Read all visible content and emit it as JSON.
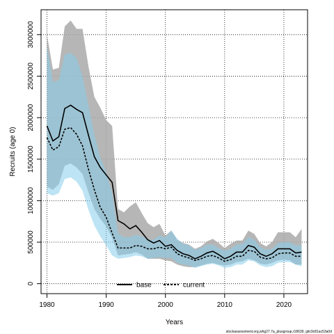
{
  "chart_data": {
    "type": "line",
    "xlabel": "Years",
    "ylabel": "Recruits (age 0)",
    "xlim": [
      1979,
      2024
    ],
    "ylim": [
      -120000,
      3300000
    ],
    "x_ticks": [
      1980,
      1990,
      2000,
      2010,
      2020
    ],
    "y_ticks": [
      0,
      500000,
      1000000,
      1500000,
      2000000,
      2500000,
      3000000
    ],
    "grid": true,
    "legend_placement": "bottom-center",
    "x": [
      1980,
      1981,
      1982,
      1983,
      1984,
      1985,
      1986,
      1987,
      1988,
      1989,
      1990,
      1991,
      1992,
      1993,
      1994,
      1995,
      1996,
      1997,
      1998,
      1999,
      2000,
      2001,
      2002,
      2003,
      2004,
      2005,
      2006,
      2007,
      2008,
      2009,
      2010,
      2011,
      2012,
      2013,
      2014,
      2015,
      2016,
      2017,
      2018,
      2019,
      2020,
      2021,
      2022,
      2023
    ],
    "series": [
      {
        "name": "base",
        "color": "#000000",
        "band_color": "#a9a9a9",
        "values": [
          1900000,
          1720000,
          1770000,
          2110000,
          2150000,
          2100000,
          2060000,
          1790000,
          1530000,
          1400000,
          1310000,
          1220000,
          760000,
          720000,
          660000,
          700000,
          620000,
          530000,
          490000,
          520000,
          450000,
          470000,
          400000,
          360000,
          340000,
          300000,
          330000,
          370000,
          390000,
          350000,
          300000,
          330000,
          380000,
          380000,
          460000,
          440000,
          360000,
          330000,
          360000,
          420000,
          420000,
          420000,
          370000,
          380000
        ],
        "lower": [
          1170000,
          1130000,
          1200000,
          1420000,
          1450000,
          1400000,
          1320000,
          1100000,
          900000,
          780000,
          690000,
          550000,
          340000,
          350000,
          360000,
          380000,
          350000,
          300000,
          300000,
          300000,
          280000,
          270000,
          230000,
          210000,
          200000,
          200000,
          220000,
          240000,
          250000,
          230000,
          220000,
          230000,
          260000,
          270000,
          300000,
          280000,
          240000,
          230000,
          250000,
          280000,
          290000,
          280000,
          230000,
          230000
        ],
        "upper": [
          3000000,
          2580000,
          2600000,
          3100000,
          3170000,
          3070000,
          3070000,
          2620000,
          2250000,
          2120000,
          1970000,
          1900000,
          900000,
          860000,
          930000,
          980000,
          850000,
          730000,
          680000,
          720000,
          580000,
          640000,
          530000,
          490000,
          470000,
          420000,
          450000,
          510000,
          540000,
          490000,
          430000,
          480000,
          520000,
          520000,
          640000,
          600000,
          490000,
          450000,
          500000,
          620000,
          620000,
          620000,
          560000,
          660000
        ]
      },
      {
        "name": "current",
        "color": "#000000",
        "band_color": "#87ceeb",
        "values": [
          1760000,
          1610000,
          1650000,
          1860000,
          1880000,
          1800000,
          1660000,
          1380000,
          1130000,
          920000,
          800000,
          610000,
          430000,
          430000,
          430000,
          460000,
          450000,
          420000,
          420000,
          440000,
          420000,
          440000,
          360000,
          330000,
          310000,
          280000,
          300000,
          330000,
          340000,
          310000,
          270000,
          290000,
          330000,
          330000,
          400000,
          390000,
          320000,
          300000,
          310000,
          360000,
          370000,
          370000,
          330000,
          330000
        ],
        "lower": [
          1090000,
          1060000,
          1090000,
          1260000,
          1280000,
          1230000,
          1120000,
          890000,
          700000,
          570000,
          460000,
          340000,
          300000,
          310000,
          320000,
          340000,
          330000,
          300000,
          310000,
          320000,
          310000,
          310000,
          250000,
          230000,
          220000,
          190000,
          210000,
          230000,
          240000,
          220000,
          190000,
          200000,
          230000,
          230000,
          280000,
          270000,
          220000,
          200000,
          210000,
          250000,
          260000,
          260000,
          230000,
          210000
        ],
        "upper": [
          2870000,
          2430000,
          2450000,
          2760000,
          2780000,
          2720000,
          2500000,
          2150000,
          1800000,
          1520000,
          1350000,
          1090000,
          610000,
          560000,
          560000,
          590000,
          570000,
          530000,
          530000,
          580000,
          560000,
          640000,
          540000,
          480000,
          460000,
          410000,
          430000,
          470000,
          470000,
          430000,
          400000,
          420000,
          470000,
          480000,
          560000,
          530000,
          440000,
          410000,
          420000,
          490000,
          500000,
          500000,
          460000,
          460000
        ]
      }
    ],
    "legend": [
      "base",
      "current"
    ]
  },
  "footer": "stockassessment.org,whg27.7a_plusgroup,r18639, gitc9c81ac53a0d"
}
